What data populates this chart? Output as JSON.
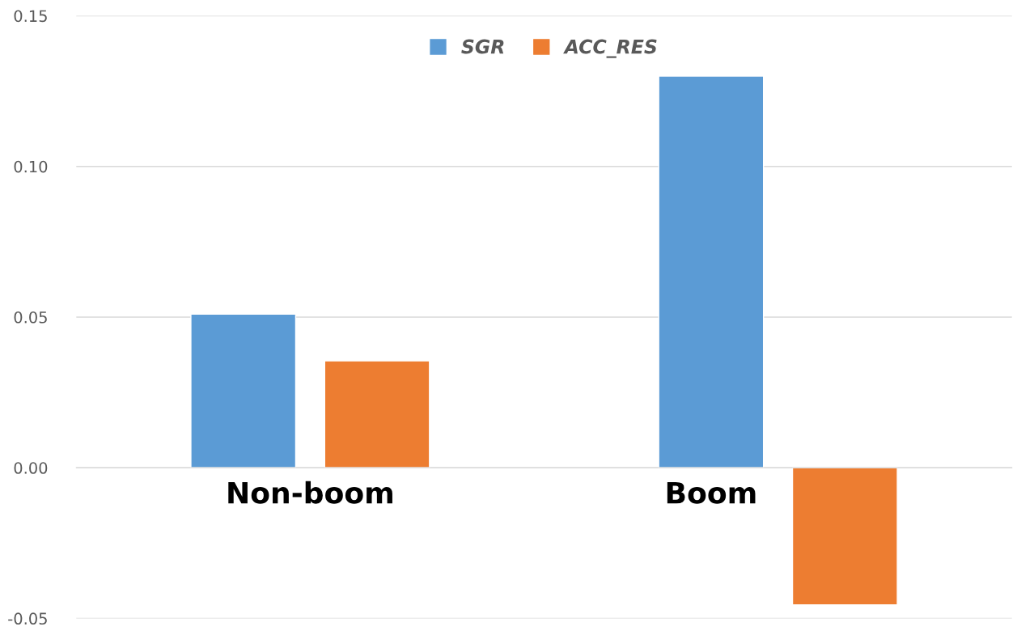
{
  "chart_data": {
    "type": "bar",
    "categories": [
      "Non-boom",
      "Boom"
    ],
    "series": [
      {
        "name": "SGR",
        "color": "#5b9bd5",
        "values": [
          0.051,
          0.13
        ]
      },
      {
        "name": "ACC_RES",
        "color": "#ed7d31",
        "values": [
          0.0355,
          -0.0455
        ]
      }
    ],
    "ylim": [
      -0.05,
      0.15
    ],
    "yticks": [
      {
        "value": -0.05,
        "label": "-0.05"
      },
      {
        "value": 0,
        "label": "0.00"
      },
      {
        "value": 0.05,
        "label": "0.05"
      },
      {
        "value": 0.1,
        "label": "0.10"
      },
      {
        "value": 0.15,
        "label": "0.15"
      }
    ],
    "grid": "y",
    "legend": "top"
  }
}
